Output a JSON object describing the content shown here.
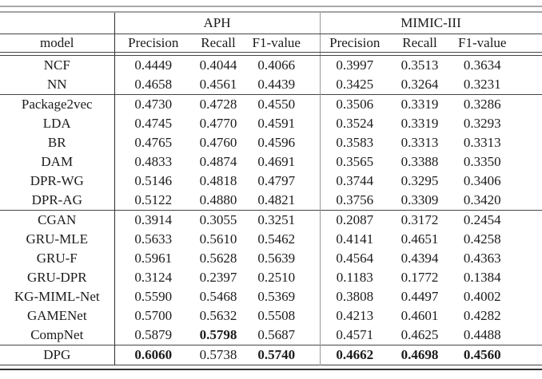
{
  "table": {
    "dataset_headers": [
      {
        "label": "APH"
      },
      {
        "label": "MIMIC-III"
      }
    ],
    "model_column_header": "model",
    "metric_headers": [
      "Precision",
      "Recall",
      "F1-value"
    ],
    "row_groups": [
      {
        "rows": [
          {
            "model": "NCF",
            "values": [
              "0.4449",
              "0.4044",
              "0.4066",
              "0.3997",
              "0.3513",
              "0.3634"
            ]
          },
          {
            "model": "NN",
            "values": [
              "0.4658",
              "0.4561",
              "0.4439",
              "0.3425",
              "0.3264",
              "0.3231"
            ]
          }
        ]
      },
      {
        "rows": [
          {
            "model": "Package2vec",
            "values": [
              "0.4730",
              "0.4728",
              "0.4550",
              "0.3506",
              "0.3319",
              "0.3286"
            ]
          },
          {
            "model": "LDA",
            "values": [
              "0.4745",
              "0.4770",
              "0.4591",
              "0.3524",
              "0.3319",
              "0.3293"
            ]
          },
          {
            "model": "BR",
            "values": [
              "0.4765",
              "0.4760",
              "0.4596",
              "0.3583",
              "0.3313",
              "0.3313"
            ]
          },
          {
            "model": "DAM",
            "values": [
              "0.4833",
              "0.4874",
              "0.4691",
              "0.3565",
              "0.3388",
              "0.3350"
            ]
          },
          {
            "model": "DPR-WG",
            "values": [
              "0.5146",
              "0.4818",
              "0.4797",
              "0.3744",
              "0.3295",
              "0.3406"
            ]
          },
          {
            "model": "DPR-AG",
            "values": [
              "0.5122",
              "0.4880",
              "0.4821",
              "0.3756",
              "0.3309",
              "0.3420"
            ]
          }
        ]
      },
      {
        "rows": [
          {
            "model": "CGAN",
            "values": [
              "0.3914",
              "0.3055",
              "0.3251",
              "0.2087",
              "0.3172",
              "0.2454"
            ]
          },
          {
            "model": "GRU-MLE",
            "values": [
              "0.5633",
              "0.5610",
              "0.5462",
              "0.4141",
              "0.4651",
              "0.4258"
            ]
          },
          {
            "model": "GRU-F",
            "values": [
              "0.5961",
              "0.5628",
              "0.5639",
              "0.4564",
              "0.4394",
              "0.4363"
            ]
          },
          {
            "model": "GRU-DPR",
            "values": [
              "0.3124",
              "0.2397",
              "0.2510",
              "0.1183",
              "0.1772",
              "0.1384"
            ]
          },
          {
            "model": "KG-MIML-Net",
            "values": [
              "0.5590",
              "0.5468",
              "0.5369",
              "0.3808",
              "0.4497",
              "0.4002"
            ]
          },
          {
            "model": "GAMENet",
            "values": [
              "0.5700",
              "0.5632",
              "0.5508",
              "0.4213",
              "0.4601",
              "0.4282"
            ]
          },
          {
            "model": "CompNet",
            "values": [
              "0.5879",
              "0.5798",
              "0.5687",
              "0.4571",
              "0.4625",
              "0.4488"
            ],
            "bold": [
              0,
              1,
              0,
              0,
              0,
              0
            ]
          }
        ]
      },
      {
        "rows": [
          {
            "model": "DPG",
            "values": [
              "0.6060",
              "0.5738",
              "0.5740",
              "0.4662",
              "0.4698",
              "0.4560"
            ],
            "bold": [
              1,
              0,
              1,
              1,
              1,
              1
            ]
          }
        ]
      }
    ]
  }
}
